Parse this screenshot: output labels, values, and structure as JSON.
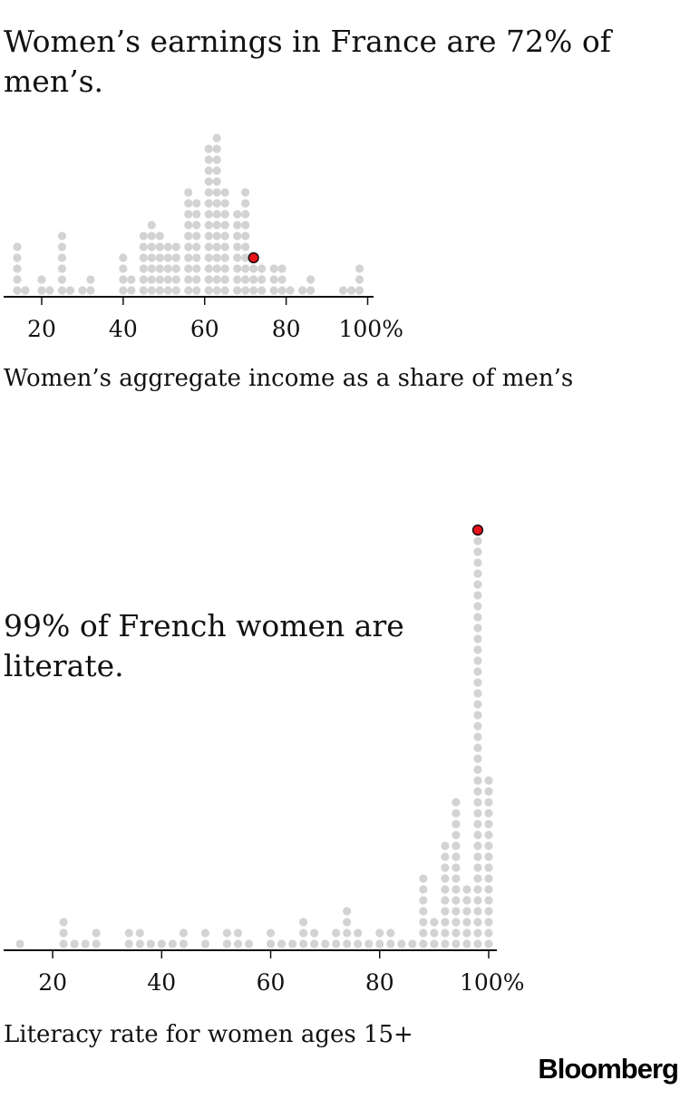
{
  "charts": [
    {
      "headline": "Women’s earnings in France are 72% of men’s.",
      "xlabel": "Women’s aggregate income as a share of men’s"
    },
    {
      "headline": "99% of French women are literate.",
      "xlabel": "Literacy rate for women ages 15+"
    }
  ],
  "brand": "Bloomberg",
  "colors": {
    "dot": "#d3d3d3",
    "highlight": "#e8121b",
    "highlight_stroke": "#111111",
    "axis": "#111111"
  },
  "chart_data": [
    {
      "type": "scatter",
      "title": "Women’s earnings in France are 72% of men’s.",
      "xlabel": "Women’s aggregate income as a share of men’s",
      "ylabel": "",
      "xlim": [
        12,
        101
      ],
      "xticks": [
        20,
        40,
        60,
        80,
        100
      ],
      "xtick_labels": [
        "20",
        "40",
        "60",
        "80",
        "100%"
      ],
      "bin_width": 2,
      "bins": [
        {
          "x": 14,
          "count": 5
        },
        {
          "x": 16,
          "count": 1
        },
        {
          "x": 20,
          "count": 2
        },
        {
          "x": 22,
          "count": 1
        },
        {
          "x": 25,
          "count": 6
        },
        {
          "x": 27,
          "count": 1
        },
        {
          "x": 30,
          "count": 1
        },
        {
          "x": 32,
          "count": 2
        },
        {
          "x": 40,
          "count": 4
        },
        {
          "x": 42,
          "count": 2
        },
        {
          "x": 45,
          "count": 6
        },
        {
          "x": 47,
          "count": 7
        },
        {
          "x": 49,
          "count": 6
        },
        {
          "x": 51,
          "count": 5
        },
        {
          "x": 53,
          "count": 5
        },
        {
          "x": 56,
          "count": 10
        },
        {
          "x": 58,
          "count": 9
        },
        {
          "x": 61,
          "count": 14
        },
        {
          "x": 63,
          "count": 15
        },
        {
          "x": 65,
          "count": 10
        },
        {
          "x": 68,
          "count": 8
        },
        {
          "x": 70,
          "count": 10
        },
        {
          "x": 72,
          "count": 3
        },
        {
          "x": 74,
          "count": 3
        },
        {
          "x": 77,
          "count": 3
        },
        {
          "x": 79,
          "count": 3
        },
        {
          "x": 81,
          "count": 1
        },
        {
          "x": 84,
          "count": 1
        },
        {
          "x": 86,
          "count": 2
        },
        {
          "x": 94,
          "count": 1
        },
        {
          "x": 96,
          "count": 1
        },
        {
          "x": 98,
          "count": 3
        }
      ],
      "highlight": {
        "x": 72,
        "label": "France"
      }
    },
    {
      "type": "scatter",
      "title": "99% of French women are literate.",
      "xlabel": "Literacy rate for women ages 15+",
      "ylabel": "",
      "xlim": [
        11,
        101
      ],
      "xticks": [
        20,
        40,
        60,
        80,
        100
      ],
      "xtick_labels": [
        "20",
        "40",
        "60",
        "80",
        "100%"
      ],
      "bin_width": 2,
      "bins": [
        {
          "x": 14,
          "count": 1
        },
        {
          "x": 22,
          "count": 3
        },
        {
          "x": 24,
          "count": 1
        },
        {
          "x": 26,
          "count": 1
        },
        {
          "x": 28,
          "count": 2
        },
        {
          "x": 34,
          "count": 2
        },
        {
          "x": 36,
          "count": 2
        },
        {
          "x": 38,
          "count": 1
        },
        {
          "x": 40,
          "count": 1
        },
        {
          "x": 42,
          "count": 1
        },
        {
          "x": 44,
          "count": 2
        },
        {
          "x": 48,
          "count": 2
        },
        {
          "x": 52,
          "count": 2
        },
        {
          "x": 54,
          "count": 2
        },
        {
          "x": 56,
          "count": 1
        },
        {
          "x": 60,
          "count": 2
        },
        {
          "x": 62,
          "count": 1
        },
        {
          "x": 64,
          "count": 1
        },
        {
          "x": 66,
          "count": 3
        },
        {
          "x": 68,
          "count": 2
        },
        {
          "x": 70,
          "count": 1
        },
        {
          "x": 72,
          "count": 2
        },
        {
          "x": 74,
          "count": 4
        },
        {
          "x": 76,
          "count": 2
        },
        {
          "x": 78,
          "count": 1
        },
        {
          "x": 80,
          "count": 2
        },
        {
          "x": 82,
          "count": 2
        },
        {
          "x": 84,
          "count": 1
        },
        {
          "x": 86,
          "count": 1
        },
        {
          "x": 88,
          "count": 7
        },
        {
          "x": 90,
          "count": 3
        },
        {
          "x": 92,
          "count": 10
        },
        {
          "x": 94,
          "count": 14
        },
        {
          "x": 96,
          "count": 6
        },
        {
          "x": 98,
          "count": 38
        },
        {
          "x": 100,
          "count": 16
        }
      ],
      "highlight": {
        "x": 98,
        "label": "France"
      }
    }
  ]
}
